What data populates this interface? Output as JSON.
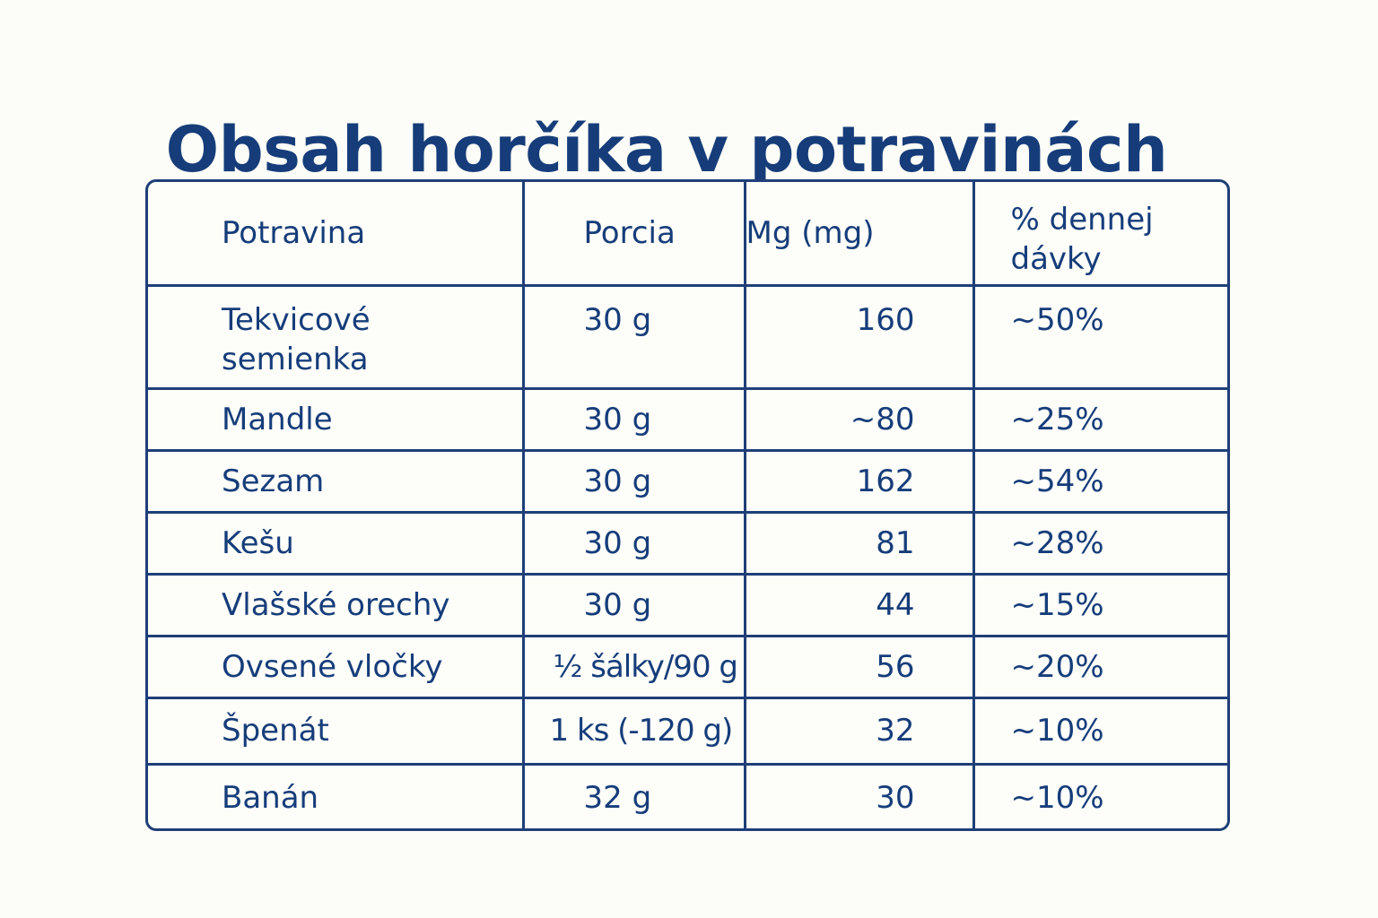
{
  "title": "Obsah horčíka v potravinách",
  "table": {
    "headers": {
      "food": "Potravina",
      "portion": "Porcia",
      "mg": "Mg (mg)",
      "pct_line1": "% dennej",
      "pct_line2": "dávky"
    },
    "rows": [
      {
        "food_line1": "Tekvicové",
        "food_line2": "semienka",
        "portion": "30 g",
        "mg": "160",
        "pct": "~50%"
      },
      {
        "food": "Mandle",
        "portion": "30 g",
        "mg": "~80",
        "pct": "~25%"
      },
      {
        "food": "Sezam",
        "portion": "30 g",
        "mg": "162",
        "pct": "~54%"
      },
      {
        "food": "Kešu",
        "portion": "30 g",
        "mg": "81",
        "pct": "~28%"
      },
      {
        "food": "Vlašské orechy",
        "portion": "30 g",
        "mg": "44",
        "pct": "~15%"
      },
      {
        "food": "Ovsené vločky",
        "portion": "½ šálky/90 g",
        "mg": "56",
        "pct": "~20%"
      },
      {
        "food": "Špenát",
        "portion": "1 ks (-120 g)",
        "mg": "32",
        "pct": "~10%"
      },
      {
        "food": "Banán",
        "portion": "32 g",
        "mg": "30",
        "pct": "~10%"
      }
    ]
  },
  "colors": {
    "text": "#163d7a",
    "border": "#1e3f78",
    "background": "#fcfcf8"
  }
}
